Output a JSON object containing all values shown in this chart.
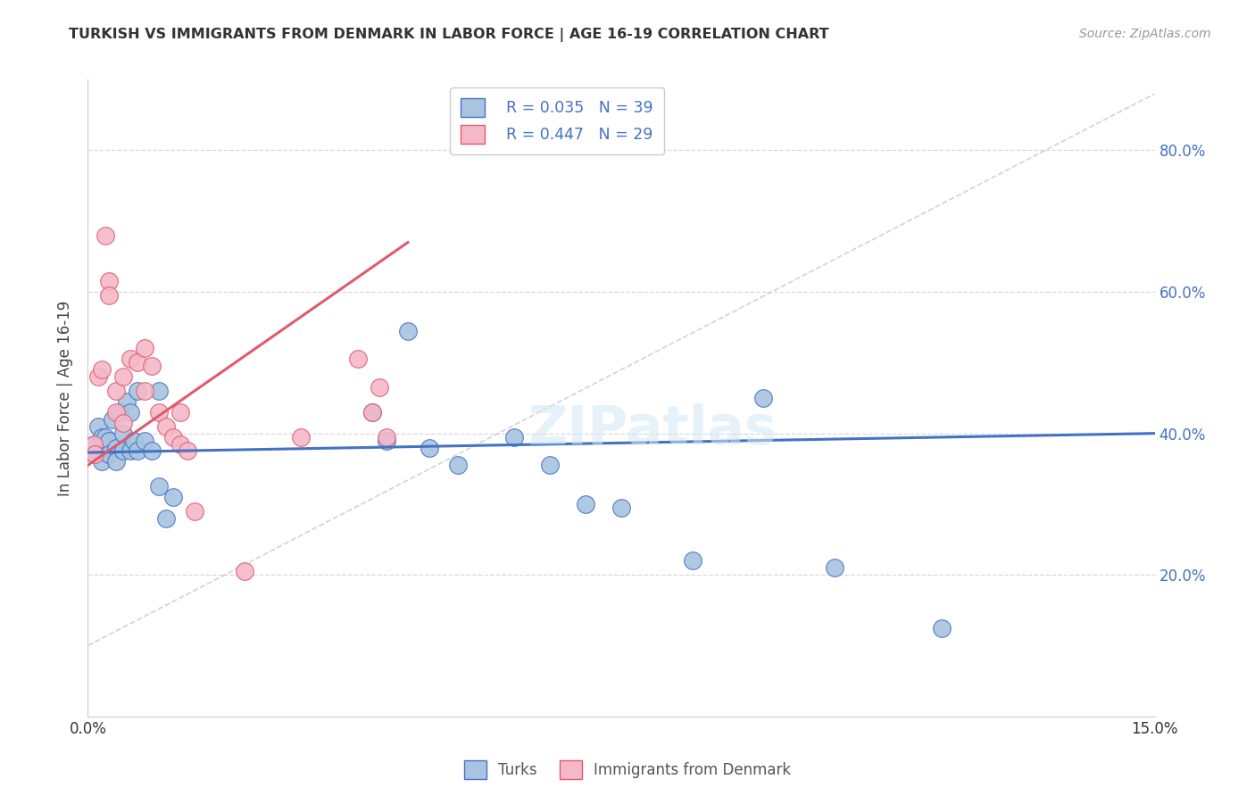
{
  "title": "TURKISH VS IMMIGRANTS FROM DENMARK IN LABOR FORCE | AGE 16-19 CORRELATION CHART",
  "source": "Source: ZipAtlas.com",
  "ylabel": "In Labor Force | Age 16-19",
  "xlim": [
    0.0,
    0.15
  ],
  "ylim": [
    0.0,
    0.9
  ],
  "yticks": [
    0.2,
    0.4,
    0.6,
    0.8
  ],
  "ytick_labels": [
    "20.0%",
    "40.0%",
    "60.0%",
    "80.0%"
  ],
  "xticks": [
    0.0,
    0.05,
    0.1,
    0.15
  ],
  "xtick_labels": [
    "0.0%",
    "",
    "",
    "15.0%"
  ],
  "legend_R1": "R = 0.035",
  "legend_N1": "N = 39",
  "legend_R2": "R = 0.447",
  "legend_N2": "N = 29",
  "color_turks": "#a8c4e0",
  "color_denmark": "#f4b8c8",
  "color_turks_line": "#4472c4",
  "color_denmark_line": "#e05a6e",
  "color_diagonal": "#c8c8c8",
  "background_color": "#ffffff",
  "grid_color": "#d8d8d8",
  "turks_x": [
    0.0008,
    0.001,
    0.0015,
    0.002,
    0.002,
    0.0025,
    0.003,
    0.003,
    0.0035,
    0.004,
    0.004,
    0.0045,
    0.005,
    0.005,
    0.0055,
    0.006,
    0.006,
    0.0065,
    0.007,
    0.007,
    0.008,
    0.009,
    0.01,
    0.01,
    0.011,
    0.012,
    0.04,
    0.042,
    0.045,
    0.048,
    0.052,
    0.06,
    0.065,
    0.07,
    0.075,
    0.085,
    0.095,
    0.105,
    0.12
  ],
  "turks_y": [
    0.385,
    0.37,
    0.41,
    0.395,
    0.36,
    0.395,
    0.39,
    0.37,
    0.42,
    0.38,
    0.36,
    0.43,
    0.4,
    0.375,
    0.445,
    0.43,
    0.375,
    0.39,
    0.46,
    0.375,
    0.39,
    0.375,
    0.325,
    0.46,
    0.28,
    0.31,
    0.43,
    0.39,
    0.545,
    0.38,
    0.355,
    0.395,
    0.355,
    0.3,
    0.295,
    0.22,
    0.45,
    0.21,
    0.125
  ],
  "denmark_x": [
    0.0008,
    0.001,
    0.0015,
    0.002,
    0.0025,
    0.003,
    0.003,
    0.004,
    0.004,
    0.005,
    0.005,
    0.006,
    0.007,
    0.008,
    0.008,
    0.009,
    0.01,
    0.011,
    0.012,
    0.013,
    0.013,
    0.014,
    0.015,
    0.022,
    0.03,
    0.038,
    0.04,
    0.041,
    0.042
  ],
  "denmark_y": [
    0.385,
    0.37,
    0.48,
    0.49,
    0.68,
    0.615,
    0.595,
    0.46,
    0.43,
    0.48,
    0.415,
    0.505,
    0.5,
    0.52,
    0.46,
    0.495,
    0.43,
    0.41,
    0.395,
    0.43,
    0.385,
    0.375,
    0.29,
    0.205,
    0.395,
    0.505,
    0.43,
    0.465,
    0.395
  ]
}
